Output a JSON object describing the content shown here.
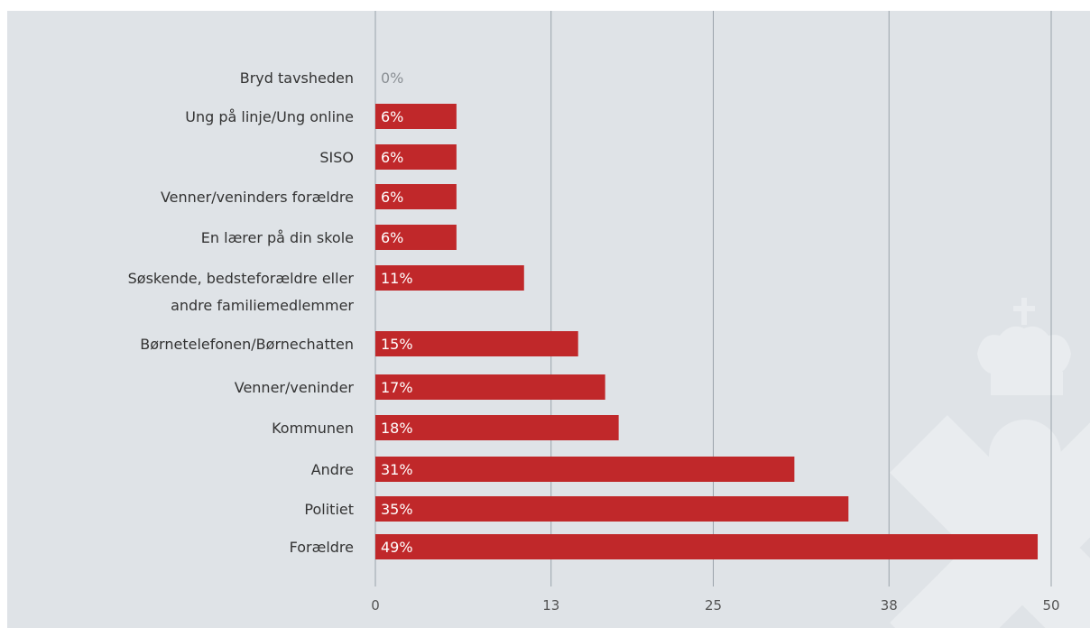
{
  "chart_data": {
    "type": "bar",
    "orientation": "horizontal",
    "categories": [
      [
        "Bryd tavsheden"
      ],
      [
        "Ung på linje/Ung online"
      ],
      [
        "SISO"
      ],
      [
        "Venner/veninders forældre"
      ],
      [
        "En lærer på din skole"
      ],
      [
        "Søskende, bedsteforældre eller",
        "andre familiemedlemmer"
      ],
      [
        "Børnetelefonen/Børnechatten"
      ],
      [
        "Venner/veninder"
      ],
      [
        "Kommunen"
      ],
      [
        "Andre"
      ],
      [
        "Politiet"
      ],
      [
        "Forældre"
      ]
    ],
    "values": [
      0,
      6,
      6,
      6,
      6,
      11,
      15,
      17,
      18,
      31,
      35,
      49
    ],
    "data_labels": [
      "0%",
      "6%",
      "6%",
      "6%",
      "6%",
      "11%",
      "15%",
      "17%",
      "18%",
      "31%",
      "35%",
      "49%"
    ],
    "xticks": [
      0,
      13,
      25,
      38,
      50
    ],
    "xtick_labels": [
      "0",
      "13",
      "25",
      "38",
      "50"
    ],
    "xlim": [
      0,
      50
    ],
    "grid": true,
    "title": "",
    "xlabel": "",
    "ylabel": ""
  },
  "colors": {
    "bar": "#c0282a",
    "background": "#dfe3e7",
    "gridline": "#9aa3ab",
    "watermark": "#e9ecef",
    "zero_label": "#8a8f94",
    "label_on_bar": "#ffffff"
  },
  "watermark_icon": "crown-cross-watermark-icon"
}
